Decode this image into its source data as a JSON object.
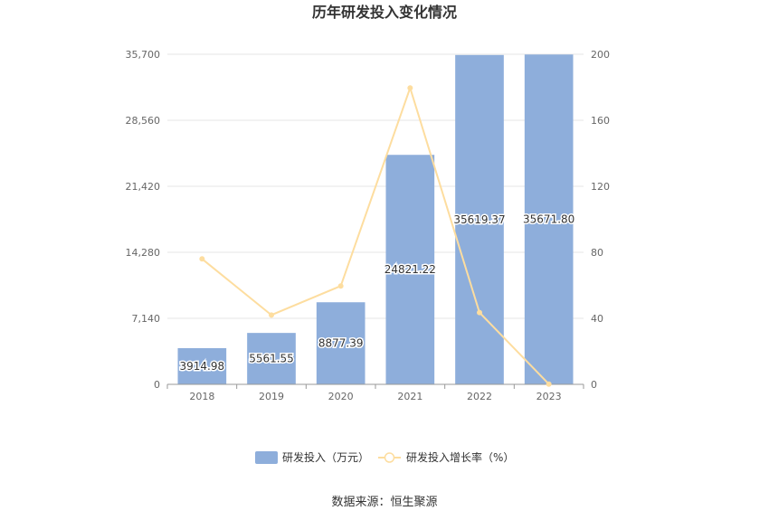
{
  "chart_data": {
    "type": "bar",
    "title": "历年研发投入变化情况",
    "categories": [
      "2018",
      "2019",
      "2020",
      "2021",
      "2022",
      "2023"
    ],
    "series": [
      {
        "name": "研发投入（万元）",
        "type": "bar",
        "axis": "left",
        "values": [
          3914.98,
          5561.55,
          8877.39,
          24821.22,
          35619.37,
          35671.8
        ],
        "labels": [
          "3914.98",
          "5561.55",
          "8877.39",
          "24821.22",
          "35619.37",
          "35671.80"
        ],
        "color": "#8eaedb"
      },
      {
        "name": "研发投入增长率（%）",
        "type": "line",
        "axis": "right",
        "values": [
          76,
          42,
          59.6,
          179.6,
          43.5,
          0.15
        ],
        "color": "#fddd9f"
      }
    ],
    "y_left": {
      "min": 0,
      "max": 35700,
      "ticks": [
        "0",
        "7,140",
        "14,280",
        "21,420",
        "28,560",
        "35,700"
      ]
    },
    "y_right": {
      "min": 0,
      "max": 200,
      "ticks": [
        "0",
        "40",
        "80",
        "120",
        "160",
        "200"
      ]
    },
    "grid": true,
    "legend_position": "bottom"
  },
  "source": "数据来源：恒生聚源"
}
